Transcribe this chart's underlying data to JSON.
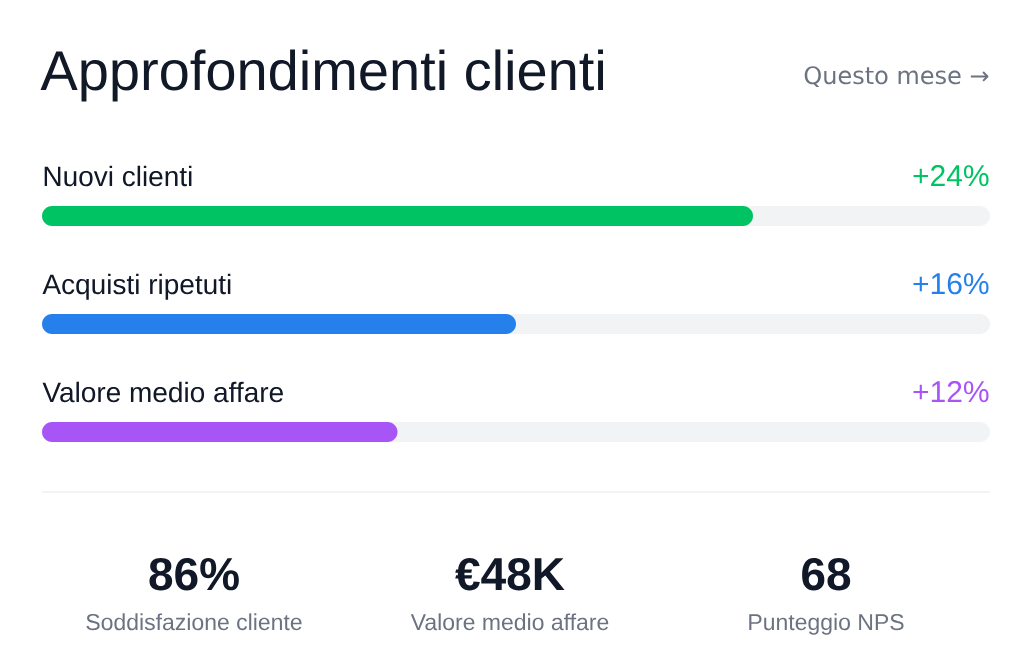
{
  "chart_data": [
    {
      "type": "bar",
      "orientation": "horizontal",
      "title": "Approfondimenti clienti",
      "annotations": [
        "Questo mese →"
      ],
      "categories": [
        "Nuovi clienti",
        "Acquisti ripetuti",
        "Valore medio affare"
      ],
      "values": [
        24,
        16,
        12
      ],
      "value_labels": [
        "+24%",
        "+16%",
        "+12%"
      ],
      "colors": [
        "#00c463",
        "#2680eb",
        "#a855f7"
      ],
      "xlim": [
        0,
        32
      ],
      "tick_labels": "y"
    },
    {
      "type": "other",
      "annotations": [
        "86%",
        "Soddisfazione cliente",
        "€48K",
        "Valore medio affare",
        "68",
        "Punteggio NPS"
      ]
    }
  ]
}
